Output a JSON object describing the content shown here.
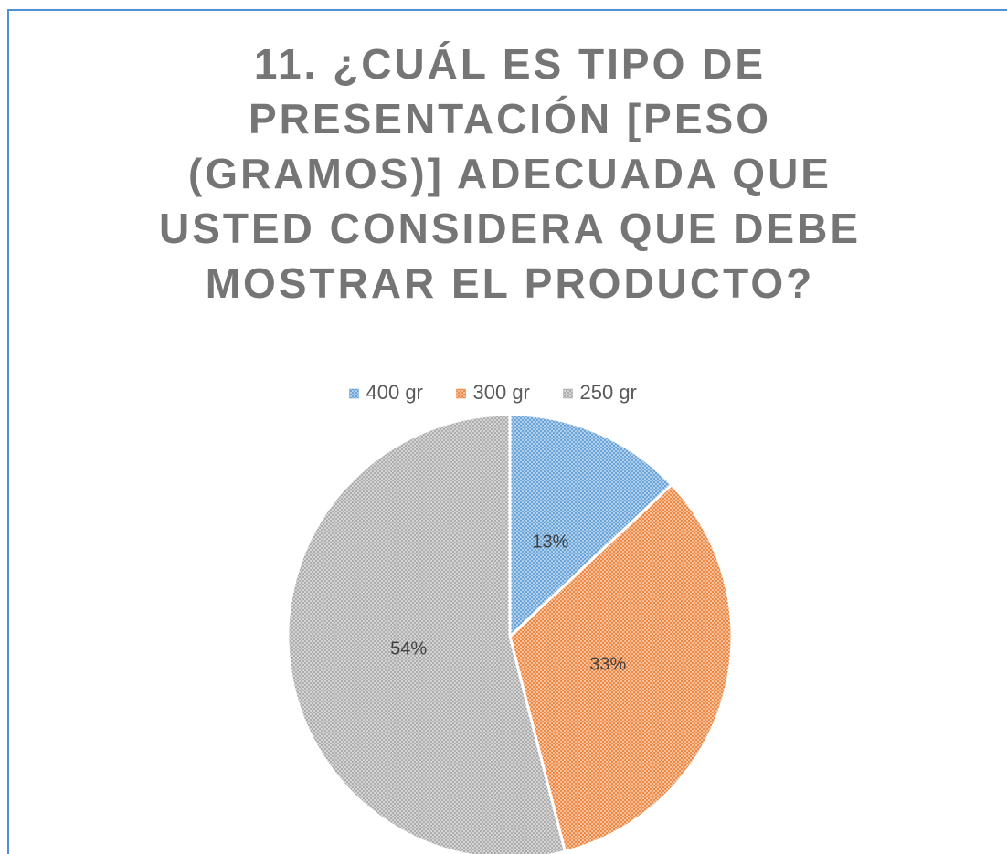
{
  "chart_data": {
    "type": "pie",
    "title": "11. ¿CUÁL ES TIPO DE PRESENTACIÓN [PESO (GRAMOS)] ADECUADA QUE USTED CONSIDERA QUE DEBE MOSTRAR EL PRODUCTO?",
    "legend": "top",
    "series": [
      {
        "name": "400 gr",
        "color": "#5b9bd5",
        "values": [
          13
        ],
        "value_labels": [
          "13%"
        ]
      },
      {
        "name": "300 gr",
        "color": "#ed7d31",
        "values": [
          33
        ],
        "value_labels": [
          "33%"
        ]
      },
      {
        "name": "250 gr",
        "color": "#a5a5a5",
        "values": [
          54
        ],
        "value_labels": [
          "54%"
        ]
      }
    ]
  }
}
